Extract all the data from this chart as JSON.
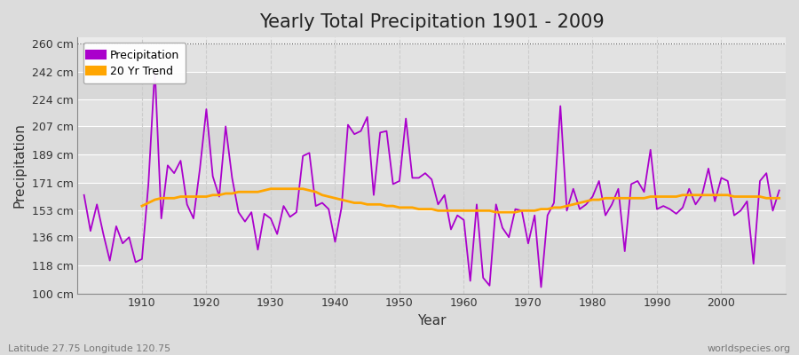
{
  "title": "Yearly Total Precipitation 1901 - 2009",
  "xlabel": "Year",
  "ylabel": "Precipitation",
  "lat_lon_label": "Latitude 27.75 Longitude 120.75",
  "source_label": "worldspecies.org",
  "years": [
    1901,
    1902,
    1903,
    1904,
    1905,
    1906,
    1907,
    1908,
    1909,
    1910,
    1911,
    1912,
    1913,
    1914,
    1915,
    1916,
    1917,
    1918,
    1919,
    1920,
    1921,
    1922,
    1923,
    1924,
    1925,
    1926,
    1927,
    1928,
    1929,
    1930,
    1931,
    1932,
    1933,
    1934,
    1935,
    1936,
    1937,
    1938,
    1939,
    1940,
    1941,
    1942,
    1943,
    1944,
    1945,
    1946,
    1947,
    1948,
    1949,
    1950,
    1951,
    1952,
    1953,
    1954,
    1955,
    1956,
    1957,
    1958,
    1959,
    1960,
    1961,
    1962,
    1963,
    1964,
    1965,
    1966,
    1967,
    1968,
    1969,
    1970,
    1971,
    1972,
    1973,
    1974,
    1975,
    1976,
    1977,
    1978,
    1979,
    1980,
    1981,
    1982,
    1983,
    1984,
    1985,
    1986,
    1987,
    1988,
    1989,
    1990,
    1991,
    1992,
    1993,
    1994,
    1995,
    1996,
    1997,
    1998,
    1999,
    2000,
    2001,
    2002,
    2003,
    2004,
    2005,
    2006,
    2007,
    2008,
    2009
  ],
  "precip": [
    163,
    140,
    157,
    138,
    121,
    143,
    132,
    136,
    120,
    122,
    170,
    244,
    148,
    182,
    177,
    185,
    157,
    148,
    180,
    218,
    175,
    162,
    207,
    174,
    152,
    146,
    152,
    128,
    151,
    148,
    138,
    156,
    149,
    152,
    188,
    190,
    156,
    158,
    154,
    133,
    155,
    208,
    202,
    204,
    213,
    163,
    203,
    204,
    170,
    172,
    212,
    174,
    174,
    177,
    173,
    157,
    163,
    141,
    150,
    147,
    108,
    157,
    110,
    105,
    157,
    142,
    136,
    154,
    153,
    132,
    150,
    104,
    150,
    158,
    220,
    153,
    167,
    154,
    157,
    162,
    172,
    150,
    157,
    167,
    127,
    170,
    172,
    165,
    192,
    154,
    156,
    154,
    151,
    155,
    167,
    157,
    163,
    180,
    159,
    174,
    172,
    150,
    153,
    159,
    119,
    172,
    177,
    153,
    166
  ],
  "trend_start_year": 1910,
  "trend": [
    156,
    158,
    160,
    161,
    161,
    161,
    162,
    162,
    162,
    162,
    162,
    163,
    163,
    164,
    164,
    165,
    165,
    165,
    165,
    166,
    167,
    167,
    167,
    167,
    167,
    167,
    166,
    165,
    163,
    162,
    161,
    160,
    159,
    158,
    158,
    157,
    157,
    157,
    156,
    156,
    155,
    155,
    155,
    154,
    154,
    154,
    153,
    153,
    153,
    153,
    153,
    153,
    153,
    153,
    153,
    152,
    152,
    152,
    152,
    153,
    153,
    153,
    154,
    154,
    155,
    155,
    156,
    157,
    158,
    159,
    160,
    160,
    161,
    161,
    161,
    161,
    161,
    161,
    161,
    162,
    162,
    162,
    162,
    162,
    163,
    163,
    163,
    163,
    163,
    163,
    163,
    163,
    162,
    162,
    162,
    162,
    162,
    161,
    161,
    161
  ],
  "ylim": [
    100,
    264
  ],
  "yticks": [
    100,
    118,
    136,
    153,
    171,
    189,
    207,
    224,
    242,
    260
  ],
  "ytick_labels": [
    "100 cm",
    "118 cm",
    "136 cm",
    "153 cm",
    "171 cm",
    "189 cm",
    "207 cm",
    "224 cm",
    "242 cm",
    "260 cm"
  ],
  "xticks": [
    1910,
    1920,
    1930,
    1940,
    1950,
    1960,
    1970,
    1980,
    1990,
    2000
  ],
  "precip_color": "#AA00CC",
  "trend_color": "#FFA500",
  "bg_color": "#DCDCDC",
  "plot_bg_color": "#EBEBEB",
  "stripe_color_light": "#E8E8E8",
  "stripe_color_dark": "#D8D8D8",
  "grid_h_color": "#FFFFFF",
  "grid_v_color": "#CCCCCC",
  "title_fontsize": 15,
  "axis_label_fontsize": 11,
  "tick_fontsize": 9,
  "legend_square_color_precip": "#AA00CC",
  "legend_square_color_trend": "#FFA500"
}
